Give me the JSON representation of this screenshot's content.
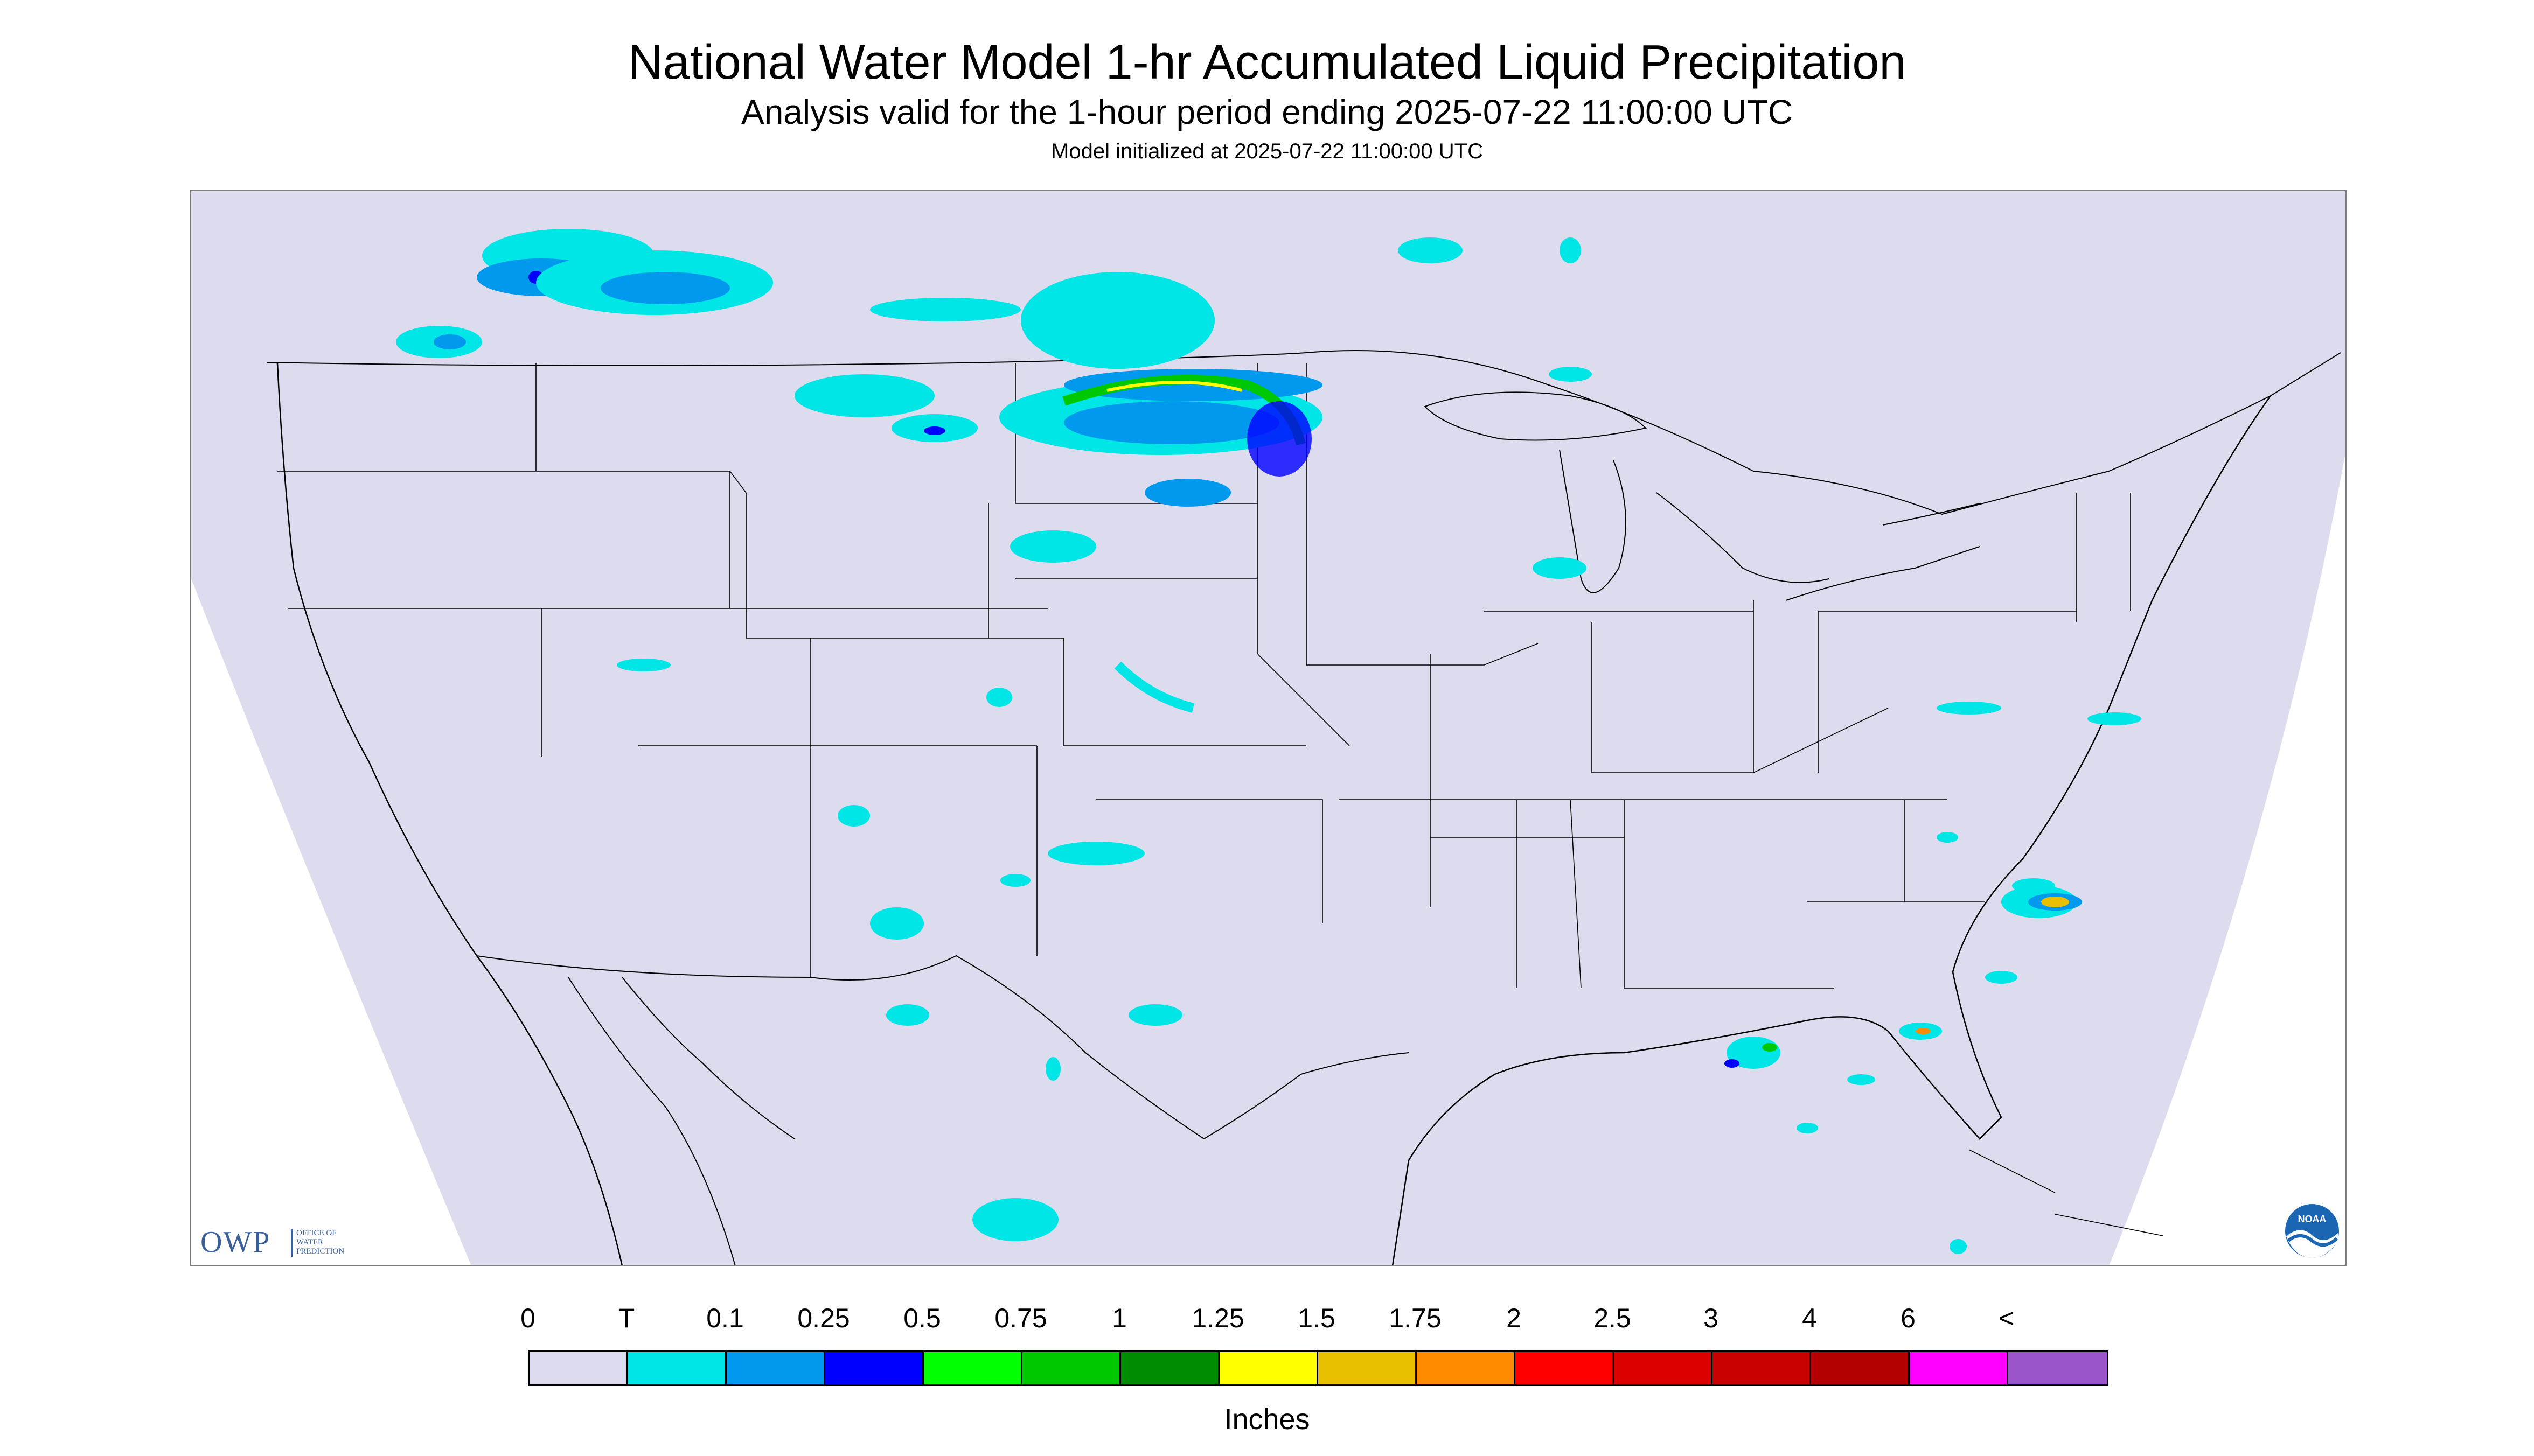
{
  "title": "National Water Model 1-hr Accumulated Liquid Precipitation",
  "subtitle": "Analysis valid for the 1-hour period ending 2025-07-22 11:00:00 UTC",
  "init_line": "Model initialized at 2025-07-22 11:00:00 UTC",
  "map": {
    "region": "CONUS",
    "domain_fill_color": "#dcdcee",
    "boundary_color": "#000000"
  },
  "owp_logo": {
    "main": "OWP",
    "sub": [
      "OFFICE OF",
      "WATER",
      "PREDICTION"
    ]
  },
  "noaa_logo": {
    "icon": "noaa-logo-icon",
    "text": "NOAA"
  },
  "legend": {
    "labels": [
      "0",
      "T",
      "0.1",
      "0.25",
      "0.5",
      "0.75",
      "1",
      "1.25",
      "1.5",
      "1.75",
      "2",
      "2.5",
      "3",
      "4",
      "6",
      "<"
    ],
    "colors": [
      "#dcdcee",
      "#00e5e5",
      "#0099ee",
      "#0000ff",
      "#00ff00",
      "#00c800",
      "#008c00",
      "#ffff00",
      "#e8c000",
      "#ff8c00",
      "#ff0000",
      "#dd0000",
      "#c80000",
      "#b40000",
      "#ff00ff",
      "#9955c9"
    ],
    "units": "Inches"
  }
}
